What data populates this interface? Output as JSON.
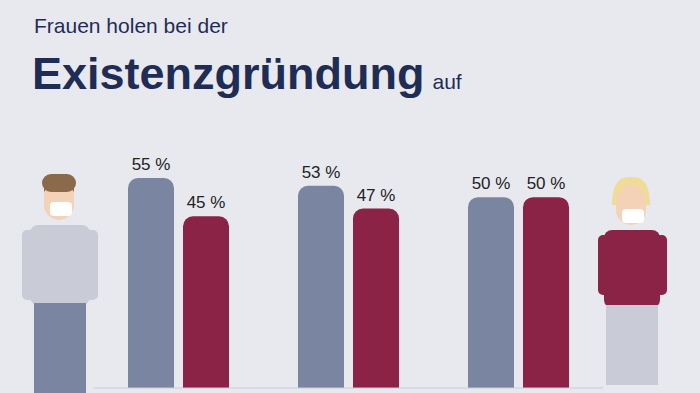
{
  "chart_data": {
    "type": "bar",
    "title": [
      "Frauen holen bei der",
      "Existenzgründung",
      "auf"
    ],
    "categories": [
      null,
      null,
      null
    ],
    "series": [
      {
        "color": "#7a86a1",
        "values": [
          55,
          53,
          50
        ],
        "value_labels": [
          "55 %",
          "53 %",
          "50 %"
        ]
      },
      {
        "color": "#8a2345",
        "values": [
          45,
          47,
          50
        ],
        "value_labels": [
          "45 %",
          "47 %",
          "50 %"
        ]
      }
    ],
    "ylim": [
      0,
      60
    ],
    "yticks": [],
    "tick_labels": false,
    "data_labels": true,
    "grid": false
  }
}
